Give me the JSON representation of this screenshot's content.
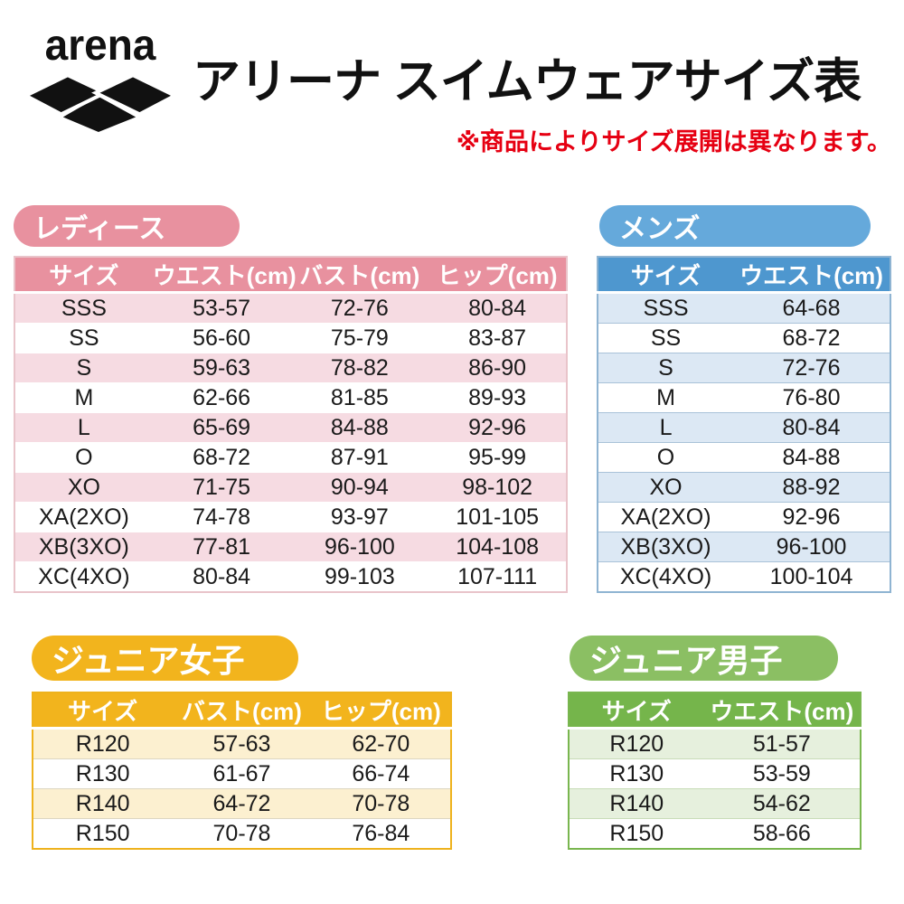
{
  "header": {
    "brand": "arena",
    "title": "アリーナ スイムウェアサイズ表",
    "note": "※商品によりサイズ展開は異なります。",
    "note_color": "#e60012",
    "logo_color": "#111111"
  },
  "chart_data": [
    {
      "type": "table",
      "title": "レディース",
      "columns": [
        "サイズ",
        "ウエスト(cm)",
        "バスト(cm)",
        "ヒップ(cm)"
      ],
      "rows": [
        [
          "SSS",
          "53-57",
          "72-76",
          "80-84"
        ],
        [
          "SS",
          "56-60",
          "75-79",
          "83-87"
        ],
        [
          "S",
          "59-63",
          "78-82",
          "86-90"
        ],
        [
          "M",
          "62-66",
          "81-85",
          "89-93"
        ],
        [
          "L",
          "65-69",
          "84-88",
          "92-96"
        ],
        [
          "O",
          "68-72",
          "87-91",
          "95-99"
        ],
        [
          "XO",
          "71-75",
          "90-94",
          "98-102"
        ],
        [
          "XA(2XO)",
          "74-78",
          "93-97",
          "101-105"
        ],
        [
          "XB(3XO)",
          "77-81",
          "96-100",
          "104-108"
        ],
        [
          "XC(4XO)",
          "80-84",
          "99-103",
          "107-111"
        ]
      ],
      "colors": {
        "accent": "#e8919f",
        "pill": "#e8919f",
        "light": "#f6dbe2",
        "border": "#e9c4ca",
        "sep": "#ffffff"
      }
    },
    {
      "type": "table",
      "title": "メンズ",
      "columns": [
        "サイズ",
        "ウエスト(cm)"
      ],
      "rows": [
        [
          "SSS",
          "64-68"
        ],
        [
          "SS",
          "68-72"
        ],
        [
          "S",
          "72-76"
        ],
        [
          "M",
          "76-80"
        ],
        [
          "L",
          "80-84"
        ],
        [
          "O",
          "84-88"
        ],
        [
          "XO",
          "88-92"
        ],
        [
          "XA(2XO)",
          "92-96"
        ],
        [
          "XB(3XO)",
          "96-100"
        ],
        [
          "XC(4XO)",
          "100-104"
        ]
      ],
      "colors": {
        "accent": "#4e97cf",
        "pill": "#65a9db",
        "light": "#dce8f4",
        "border": "#8fb4d2",
        "sep": "#a9c2d8"
      }
    },
    {
      "type": "table",
      "title": "ジュニア女子",
      "columns": [
        "サイズ",
        "バスト(cm)",
        "ヒップ(cm)"
      ],
      "rows": [
        [
          "R120",
          "57-63",
          "62-70"
        ],
        [
          "R130",
          "61-67",
          "66-74"
        ],
        [
          "R140",
          "64-72",
          "70-78"
        ],
        [
          "R150",
          "70-78",
          "76-84"
        ]
      ],
      "colors": {
        "accent": "#f2b41d",
        "pill": "#f2b41d",
        "light": "#fcf0d0",
        "border": "#eeb21d",
        "sep": "#ddd6c2"
      }
    },
    {
      "type": "table",
      "title": "ジュニア男子",
      "columns": [
        "サイズ",
        "ウエスト(cm)"
      ],
      "rows": [
        [
          "R120",
          "51-57"
        ],
        [
          "R130",
          "53-59"
        ],
        [
          "R140",
          "54-62"
        ],
        [
          "R150",
          "58-66"
        ]
      ],
      "colors": {
        "accent": "#75b54b",
        "pill": "#8bbf63",
        "light": "#e6f0dd",
        "border": "#79b64f",
        "sep": "#c8dcb8"
      }
    }
  ]
}
